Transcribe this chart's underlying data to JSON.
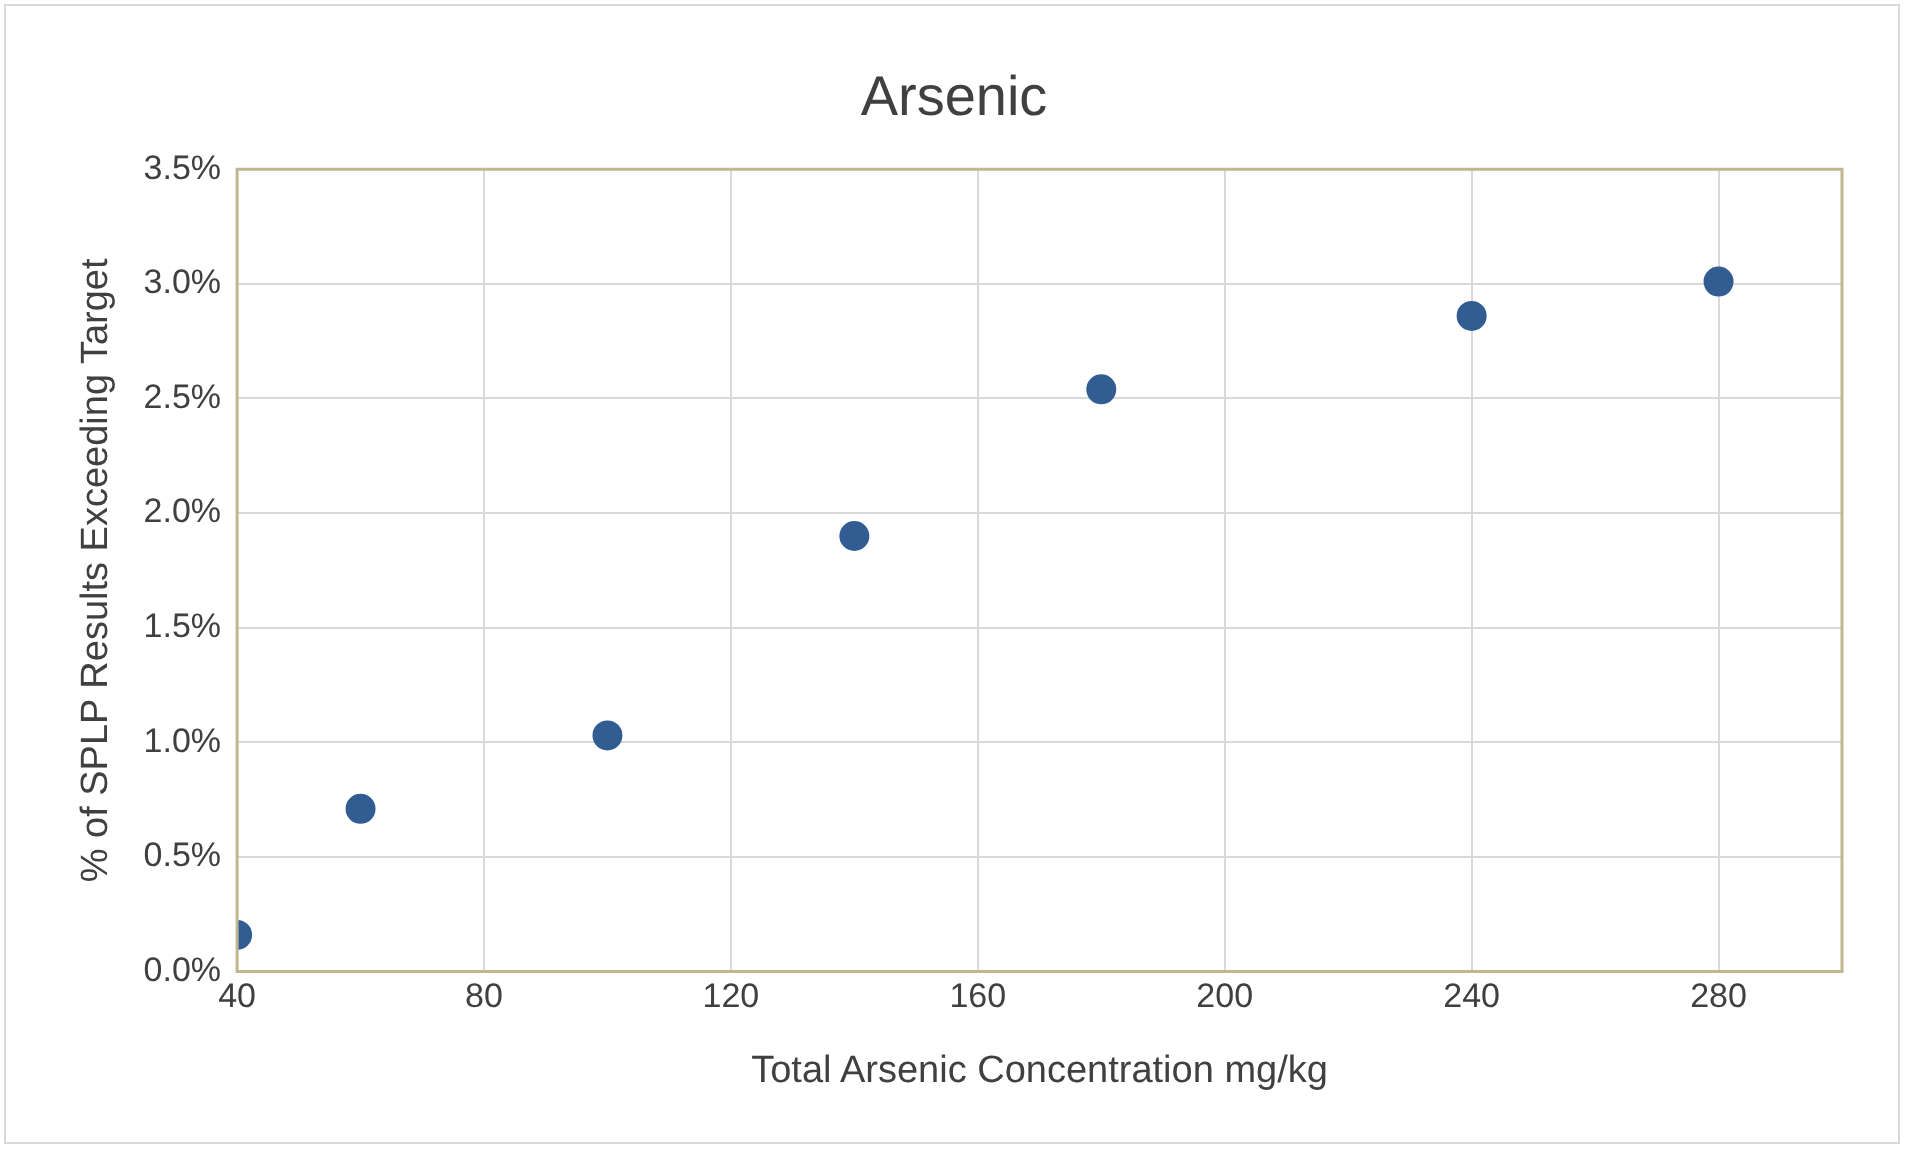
{
  "chart_data": {
    "type": "scatter",
    "title": "Arsenic",
    "xlabel": "Total Arsenic Concentration mg/kg",
    "ylabel": "% of SPLP Results Exceeding Target",
    "x": [
      40,
      60,
      100,
      140,
      180,
      240,
      280
    ],
    "series": [
      {
        "color": "#325d92",
        "values": [
          0.16,
          0.71,
          1.03,
          1.9,
          2.54,
          2.86,
          3.01
        ]
      }
    ],
    "xlim": [
      40,
      300
    ],
    "xticks": [
      40,
      80,
      120,
      160,
      200,
      240,
      280
    ],
    "ylim": [
      0,
      3.5
    ],
    "yticks": [
      {
        "value": 0,
        "label": "0.0%"
      },
      {
        "value": 0.5,
        "label": "0.5%"
      },
      {
        "value": 1,
        "label": "1.0%"
      },
      {
        "value": 1.5,
        "label": "1.5%"
      },
      {
        "value": 2,
        "label": "2.0%"
      },
      {
        "value": 2.5,
        "label": "2.5%"
      },
      {
        "value": 3,
        "label": "3.0%"
      },
      {
        "value": 3.5,
        "label": "3.5%"
      }
    ],
    "grid": true,
    "legend": false,
    "marker": "circle"
  }
}
